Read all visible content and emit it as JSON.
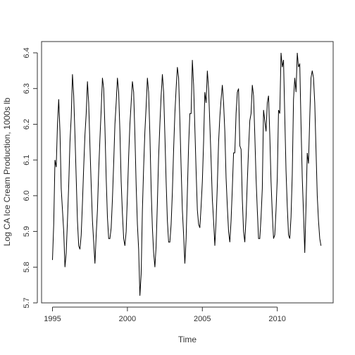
{
  "chart_data": {
    "type": "line",
    "title": "",
    "xlabel": "Time",
    "ylabel": "Log CA Ice Cream Production, 1000s lb",
    "xlim": [
      1995,
      2013
    ],
    "ylim": [
      5.7,
      6.4
    ],
    "x_ticks": [
      1995,
      2000,
      2005,
      2010
    ],
    "x_tick_labels": [
      "1995",
      "2000",
      "2005",
      "2010"
    ],
    "y_ticks": [
      5.7,
      5.8,
      5.9,
      6.0,
      6.1,
      6.2,
      6.3,
      6.4
    ],
    "y_tick_labels": [
      "5.7",
      "5.8",
      "5.9",
      "6.0",
      "6.1",
      "6.2",
      "6.3",
      "6.4"
    ],
    "grid": false,
    "legend": "none",
    "colors": {
      "line": "#000000",
      "axis": "#333333",
      "text": "#333333"
    },
    "series": [
      {
        "x_start": 1995.0,
        "frequency": 12,
        "values": [
          5.82,
          5.92,
          6.1,
          6.08,
          6.2,
          6.27,
          6.18,
          6.02,
          5.96,
          5.9,
          5.8,
          5.84,
          5.93,
          6.03,
          6.15,
          6.22,
          6.34,
          6.28,
          6.17,
          6.05,
          5.93,
          5.86,
          5.85,
          5.89,
          5.98,
          6.08,
          6.17,
          6.23,
          6.32,
          6.26,
          6.14,
          6.03,
          5.93,
          5.87,
          5.81,
          5.89,
          5.96,
          6.07,
          6.16,
          6.24,
          6.33,
          6.3,
          6.19,
          6.05,
          5.94,
          5.88,
          5.88,
          5.91,
          5.99,
          6.09,
          6.2,
          6.26,
          6.33,
          6.29,
          6.18,
          6.04,
          5.95,
          5.88,
          5.86,
          5.9,
          6.0,
          6.11,
          6.2,
          6.26,
          6.32,
          6.29,
          6.17,
          6.03,
          5.92,
          5.85,
          5.72,
          5.78,
          5.96,
          6.08,
          6.18,
          6.25,
          6.33,
          6.29,
          6.17,
          6.02,
          5.91,
          5.84,
          5.8,
          5.86,
          5.98,
          6.11,
          6.2,
          6.28,
          6.34,
          6.29,
          6.17,
          6.04,
          5.93,
          5.87,
          5.87,
          5.92,
          6.01,
          6.13,
          6.23,
          6.3,
          6.36,
          6.33,
          6.21,
          6.08,
          5.96,
          5.89,
          5.81,
          5.88,
          6.01,
          6.14,
          6.23,
          6.23,
          6.38,
          6.31,
          6.19,
          6.07,
          5.96,
          5.92,
          5.91,
          5.97,
          6.04,
          6.15,
          6.29,
          6.26,
          6.35,
          6.3,
          6.2,
          6.1,
          5.99,
          5.93,
          5.86,
          5.93,
          6.03,
          6.15,
          6.22,
          6.27,
          6.31,
          6.26,
          6.18,
          6.05,
          5.97,
          5.9,
          5.87,
          5.93,
          6.02,
          6.12,
          6.12,
          6.23,
          6.29,
          6.3,
          6.14,
          6.13,
          5.99,
          5.9,
          5.87,
          5.94,
          6.04,
          6.13,
          6.21,
          6.23,
          6.31,
          6.28,
          6.17,
          6.05,
          5.96,
          5.88,
          5.88,
          5.94,
          6.02,
          6.24,
          6.21,
          6.18,
          6.26,
          6.28,
          6.17,
          6.04,
          5.95,
          5.88,
          5.89,
          5.96,
          6.05,
          6.24,
          6.23,
          6.4,
          6.36,
          6.38,
          6.22,
          6.07,
          5.97,
          5.89,
          5.88,
          5.94,
          6.06,
          6.27,
          6.33,
          6.29,
          6.4,
          6.36,
          6.37,
          6.2,
          6.05,
          5.95,
          5.84,
          5.97,
          6.12,
          6.09,
          6.22,
          6.33,
          6.35,
          6.33,
          6.26,
          6.13,
          6.0,
          5.93,
          5.88,
          5.86
        ]
      }
    ]
  }
}
